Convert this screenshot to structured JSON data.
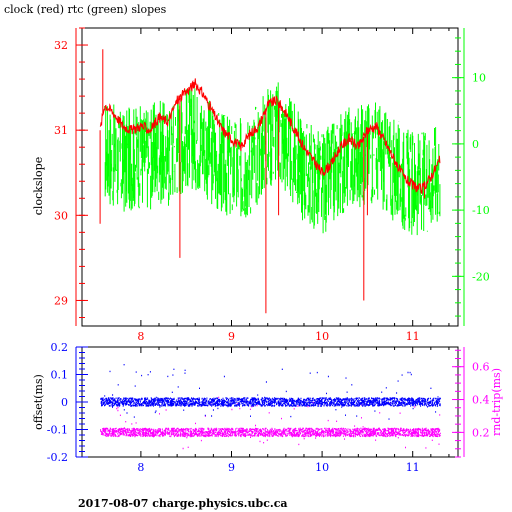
{
  "title": "clock (red) rtc (green) slopes",
  "footer": "2017-08-07 charge.physics.ubc.ca",
  "colors": {
    "clock": "#ff0000",
    "rtc": "#00ff00",
    "offset": "#0000ff",
    "rtt": "#ff00ff",
    "axis_top_left": "#ff0000",
    "axis_top_right": "#00ff00",
    "axis_bottom_left": "#0000ff",
    "axis_bottom_right": "#ff00ff",
    "frame": "#000000"
  },
  "chart_data": [
    {
      "type": "line",
      "title": "clock (red) rtc (green) slopes",
      "xlim": [
        7.35,
        11.5
      ],
      "x_ticks": [
        "8",
        "9",
        "10",
        "11"
      ],
      "y_left": {
        "label": "clockslope",
        "range": [
          28.7,
          32.2
        ],
        "ticks": [
          "29",
          "30",
          "31",
          "32"
        ]
      },
      "y_right": {
        "label": "",
        "range": [
          -27.5,
          17.5
        ],
        "ticks": [
          "10",
          "0",
          "-10",
          "-20"
        ]
      },
      "series": [
        {
          "color": "#ff0000",
          "x": [
            7.55,
            7.6,
            7.7,
            7.8,
            7.9,
            8.0,
            8.1,
            8.2,
            8.3,
            8.4,
            8.5,
            8.6,
            8.7,
            8.8,
            8.9,
            9.0,
            9.1,
            9.2,
            9.3,
            9.4,
            9.5,
            9.6,
            9.7,
            9.8,
            9.9,
            10.0,
            10.1,
            10.2,
            10.3,
            10.4,
            10.5,
            10.6,
            10.7,
            10.8,
            10.9,
            11.0,
            11.1,
            11.2,
            11.3
          ],
          "y": [
            31.0,
            31.3,
            31.2,
            31.05,
            31.0,
            31.05,
            31.0,
            31.15,
            31.1,
            31.35,
            31.45,
            31.55,
            31.4,
            31.2,
            31.0,
            30.9,
            30.8,
            30.95,
            31.05,
            31.3,
            31.35,
            31.2,
            31.0,
            30.8,
            30.65,
            30.5,
            30.6,
            30.8,
            30.9,
            30.8,
            31.0,
            31.05,
            30.85,
            30.65,
            30.45,
            30.35,
            30.3,
            30.45,
            30.65
          ]
        },
        {
          "color": "#00ff00",
          "x": [
            7.6,
            7.7,
            7.8,
            7.9,
            8.0,
            8.1,
            8.2,
            8.3,
            8.4,
            8.5,
            8.6,
            8.7,
            8.8,
            8.9,
            9.0,
            9.1,
            9.2,
            9.3,
            9.4,
            9.5,
            9.6,
            9.7,
            9.8,
            9.9,
            10.0,
            10.1,
            10.2,
            10.3,
            10.4,
            10.5,
            10.6,
            10.7,
            10.8,
            10.9,
            11.0,
            11.1,
            11.2,
            11.3
          ],
          "y": [
            -1,
            -2,
            -3,
            -2,
            -2,
            -2,
            -1,
            -2,
            0,
            1,
            1,
            0,
            -2,
            -3,
            -4,
            -4,
            -3,
            -1,
            1,
            2,
            0,
            -2,
            -4,
            -5,
            -6,
            -5,
            -3,
            -2,
            -2,
            -1,
            -1,
            -3,
            -4,
            -5,
            -6,
            -6,
            -5,
            -4
          ]
        }
      ]
    },
    {
      "type": "scatter",
      "xlim": [
        7.35,
        11.5
      ],
      "x_ticks": [
        "8",
        "9",
        "10",
        "11"
      ],
      "y_left": {
        "label": "offset(ms)",
        "range": [
          -0.2,
          0.2
        ],
        "ticks": [
          "0.2",
          "0.1",
          "0",
          "-0.1",
          "-0.2"
        ]
      },
      "y_right": {
        "label": "rnd-trip(ms)",
        "range": [
          0.05,
          0.72
        ],
        "ticks": [
          "0.6",
          "0.4",
          "0.2"
        ]
      },
      "series": [
        {
          "color": "#0000ff",
          "x": [
            7.55,
            11.3
          ],
          "y": [
            0.0,
            0.0
          ]
        },
        {
          "color": "#ff00ff",
          "x": [
            7.55,
            11.3
          ],
          "y": [
            0.2,
            0.2
          ]
        }
      ]
    }
  ]
}
